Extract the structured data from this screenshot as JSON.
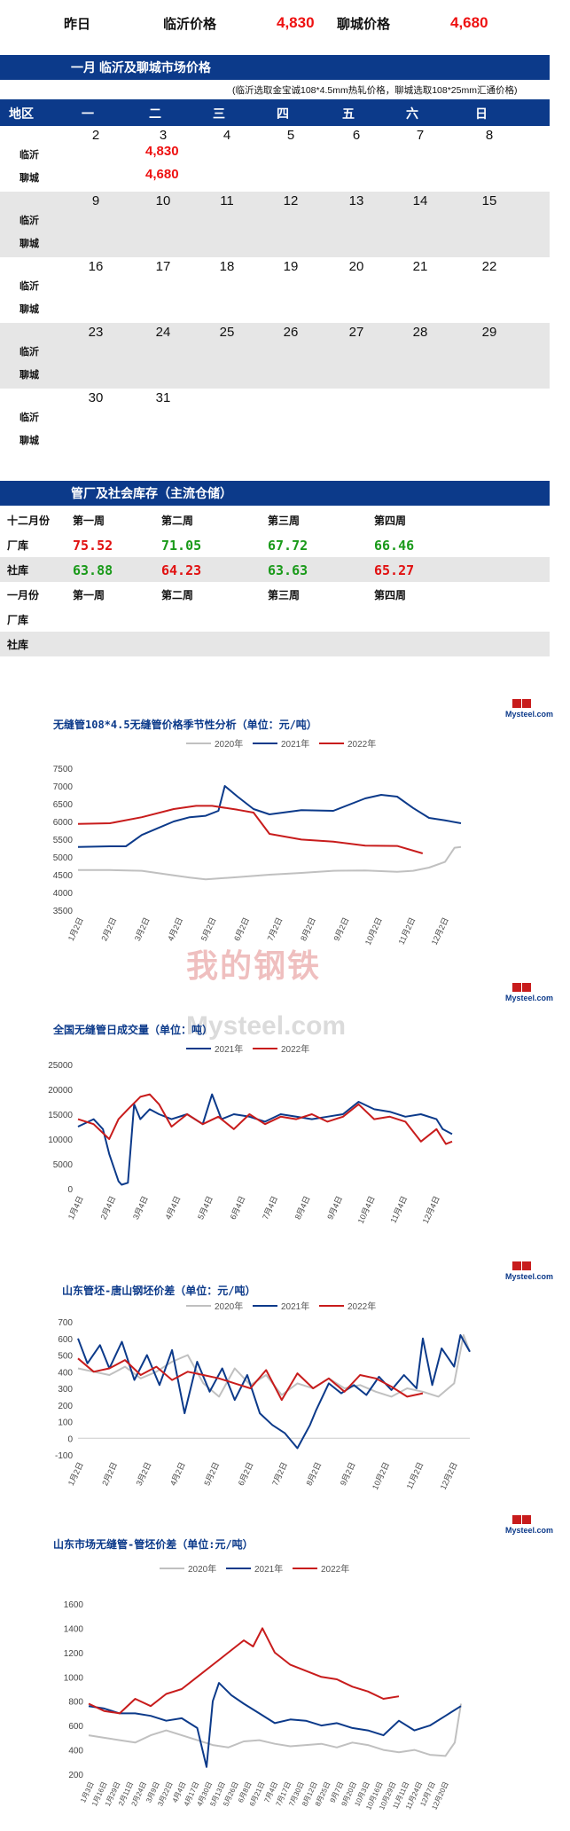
{
  "top": {
    "yesterday": "昨日",
    "linyi_label": "临沂价格",
    "linyi_value": "4,830",
    "liaocheng_label": "聊城价格",
    "liaocheng_value": "4,680"
  },
  "market": {
    "title": "一月  临沂及聊城市场价格",
    "note": "(临沂选取金宝诚108*4.5mm热轧价格，聊城选取108*25mm汇通价格)",
    "header": [
      "地区",
      "一",
      "二",
      "三",
      "四",
      "五",
      "六",
      "日"
    ],
    "city1": "临沂",
    "city2": "聊城",
    "weeks": [
      {
        "days": [
          "2",
          "3",
          "4",
          "5",
          "6",
          "7",
          "8"
        ],
        "linyi": [
          "",
          "4,830",
          "",
          "",
          "",
          "",
          ""
        ],
        "liaocheng": [
          "",
          "4,680",
          "",
          "",
          "",
          "",
          ""
        ]
      },
      {
        "days": [
          "9",
          "10",
          "11",
          "12",
          "13",
          "14",
          "15"
        ],
        "linyi": [],
        "liaocheng": []
      },
      {
        "days": [
          "16",
          "17",
          "18",
          "19",
          "20",
          "21",
          "22"
        ],
        "linyi": [],
        "liaocheng": []
      },
      {
        "days": [
          "23",
          "24",
          "25",
          "26",
          "27",
          "28",
          "29"
        ],
        "linyi": [],
        "liaocheng": []
      },
      {
        "days": [
          "30",
          "31",
          "",
          "",
          "",
          "",
          ""
        ],
        "linyi": [],
        "liaocheng": []
      }
    ]
  },
  "stock": {
    "title": "管厂及社会库存（主流仓储）",
    "dec_label": "十二月份",
    "jan_label": "一月份",
    "weeks": [
      "第一周",
      "第二周",
      "第三周",
      "第四周"
    ],
    "factory_label": "厂库",
    "social_label": "社库",
    "dec_factory": [
      {
        "v": "75.52",
        "c": "#e11111"
      },
      {
        "v": "71.05",
        "c": "#1a9a1a"
      },
      {
        "v": "67.72",
        "c": "#1a9a1a"
      },
      {
        "v": "66.46",
        "c": "#1a9a1a"
      }
    ],
    "dec_social": [
      {
        "v": "63.88",
        "c": "#1a9a1a"
      },
      {
        "v": "64.23",
        "c": "#e11111"
      },
      {
        "v": "63.63",
        "c": "#1a9a1a"
      },
      {
        "v": "65.27",
        "c": "#e11111"
      }
    ]
  },
  "logo": {
    "text": "Mysteel.com",
    "chars": "我的钢铁"
  },
  "watermark": {
    "chars": "我的钢铁",
    "text": "Mysteel.com"
  },
  "chart_data": [
    {
      "type": "line",
      "title": "无缝管108*4.5无缝管价格季节性分析（单位：元/吨）",
      "ylim": [
        3500,
        7500
      ],
      "yticks": [
        3500,
        4000,
        4500,
        5000,
        5500,
        6000,
        6500,
        7000,
        7500
      ],
      "xticks": [
        "1月2日",
        "2月2日",
        "3月2日",
        "4月2日",
        "5月2日",
        "6月2日",
        "7月2日",
        "8月2日",
        "9月2日",
        "10月2日",
        "11月2日",
        "12月2日"
      ],
      "x_domain": [
        0,
        12
      ],
      "grid": false,
      "legend": "top",
      "series": [
        {
          "name": "2020年",
          "color": "#c0c0c0",
          "x": [
            0,
            1,
            2,
            3,
            3.5,
            4,
            5,
            6,
            7,
            8,
            9,
            10,
            10.5,
            11,
            11.5,
            11.8,
            12
          ],
          "values": [
            4630,
            4630,
            4610,
            4480,
            4420,
            4370,
            4430,
            4500,
            4550,
            4610,
            4620,
            4580,
            4610,
            4700,
            4860,
            5260,
            5280
          ]
        },
        {
          "name": "2021年",
          "color": "#0c3a8a",
          "x": [
            0,
            1,
            1.5,
            2,
            2.5,
            3,
            3.5,
            4,
            4.4,
            4.6,
            5,
            5.5,
            6,
            7,
            8,
            9,
            9.5,
            10,
            10.5,
            11,
            11.5,
            12
          ],
          "values": [
            5280,
            5300,
            5300,
            5620,
            5810,
            6000,
            6120,
            6160,
            6300,
            7000,
            6700,
            6350,
            6200,
            6320,
            6300,
            6650,
            6750,
            6700,
            6380,
            6100,
            6030,
            5950
          ]
        },
        {
          "name": "2022年",
          "color": "#c81c1c",
          "x": [
            0,
            1,
            2,
            3,
            3.7,
            4.2,
            5,
            5.5,
            6,
            7,
            8,
            9,
            10,
            10.8
          ],
          "values": [
            5930,
            5950,
            6120,
            6350,
            6440,
            6440,
            6330,
            6250,
            5650,
            5490,
            5430,
            5320,
            5310,
            5100
          ]
        }
      ]
    },
    {
      "type": "line",
      "title": "全国无缝管日成交量（单位：吨）",
      "ylim": [
        0,
        25000
      ],
      "yticks": [
        0,
        5000,
        10000,
        15000,
        20000,
        25000
      ],
      "xticks": [
        "1月4日",
        "2月4日",
        "3月4日",
        "4月4日",
        "5月4日",
        "6月4日",
        "7月4日",
        "8月4日",
        "9月4日",
        "10月4日",
        "11月4日",
        "12月4日"
      ],
      "x_domain": [
        0,
        12
      ],
      "grid": false,
      "legend": "top",
      "series": [
        {
          "name": "2021年",
          "color": "#0c3a8a",
          "x": [
            0,
            0.5,
            0.8,
            1,
            1.3,
            1.4,
            1.6,
            1.8,
            2,
            2.3,
            2.6,
            3,
            3.5,
            4,
            4.3,
            4.6,
            5,
            5.5,
            6,
            6.5,
            7,
            7.5,
            8,
            8.5,
            9,
            9.5,
            10,
            10.5,
            11,
            11.5,
            11.7,
            12
          ],
          "values": [
            12500,
            14000,
            12000,
            7000,
            1500,
            800,
            1200,
            17000,
            14000,
            16000,
            15000,
            14000,
            15000,
            13000,
            19000,
            14000,
            15000,
            14500,
            13500,
            15000,
            14500,
            14000,
            14500,
            15000,
            17500,
            16000,
            15500,
            14500,
            15000,
            14000,
            12000,
            11000
          ]
        },
        {
          "name": "2022年",
          "color": "#c81c1c",
          "x": [
            0,
            0.5,
            1,
            1.3,
            1.6,
            2,
            2.3,
            2.6,
            3,
            3.5,
            4,
            4.5,
            5,
            5.5,
            6,
            6.5,
            7,
            7.5,
            8,
            8.5,
            9,
            9.5,
            10,
            10.5,
            11,
            11.5,
            11.8,
            12
          ],
          "values": [
            14000,
            13000,
            10000,
            14000,
            16000,
            18500,
            19000,
            17000,
            12500,
            15000,
            13000,
            14500,
            12000,
            15000,
            13000,
            14500,
            14000,
            15000,
            13500,
            14500,
            17000,
            14000,
            14500,
            13500,
            9500,
            12000,
            9000,
            9500
          ]
        }
      ]
    },
    {
      "type": "line",
      "title": "山东管坯-唐山钢坯价差（单位：元/吨）",
      "ylim": [
        -100,
        700
      ],
      "yticks": [
        -100,
        0,
        100,
        200,
        300,
        400,
        500,
        600,
        700
      ],
      "xticks": [
        "1月2日",
        "2月2日",
        "3月2日",
        "4月2日",
        "5月2日",
        "6月2日",
        "7月2日",
        "8月2日",
        "9月2日",
        "10月2日",
        "11月2日",
        "12月2日"
      ],
      "x_domain": [
        0,
        12.5
      ],
      "grid": false,
      "legend": "top",
      "series": [
        {
          "name": "2020年",
          "color": "#c0c0c0",
          "x": [
            0,
            0.5,
            1,
            1.5,
            2,
            2.5,
            3,
            3.5,
            4,
            4.5,
            5,
            5.5,
            6,
            6.5,
            7,
            7.5,
            8,
            8.5,
            9,
            9.5,
            10,
            10.5,
            11,
            11.5,
            12,
            12.3,
            12.5
          ],
          "values": [
            420,
            400,
            380,
            430,
            360,
            400,
            460,
            500,
            330,
            250,
            420,
            320,
            380,
            260,
            330,
            300,
            360,
            300,
            320,
            280,
            250,
            300,
            280,
            250,
            330,
            620,
            520
          ]
        },
        {
          "name": "2021年",
          "color": "#0c3a8a",
          "x": [
            0,
            0.3,
            0.7,
            1,
            1.4,
            1.8,
            2.2,
            2.6,
            3,
            3.4,
            3.8,
            4.2,
            4.6,
            5,
            5.4,
            5.8,
            6.2,
            6.6,
            7,
            7.4,
            7.6,
            8,
            8.4,
            8.8,
            9.2,
            9.6,
            10,
            10.4,
            10.8,
            11,
            11.3,
            11.6,
            12,
            12.2,
            12.5
          ],
          "values": [
            600,
            450,
            560,
            420,
            580,
            350,
            500,
            320,
            530,
            150,
            460,
            280,
            420,
            230,
            380,
            150,
            80,
            30,
            -60,
            80,
            170,
            330,
            270,
            320,
            260,
            370,
            290,
            380,
            300,
            600,
            320,
            540,
            430,
            620,
            520
          ]
        },
        {
          "name": "2022年",
          "color": "#c81c1c",
          "x": [
            0,
            0.5,
            1,
            1.5,
            2,
            2.5,
            3,
            3.5,
            4,
            4.5,
            5,
            5.5,
            6,
            6.5,
            7,
            7.5,
            8,
            8.5,
            9,
            9.5,
            10,
            10.5,
            11
          ],
          "values": [
            480,
            400,
            420,
            470,
            380,
            430,
            350,
            400,
            380,
            360,
            330,
            300,
            410,
            230,
            390,
            300,
            360,
            280,
            380,
            360,
            310,
            250,
            270
          ]
        }
      ]
    },
    {
      "type": "line",
      "title": "山东市场无缝管-管坯价差（单位:元/吨）",
      "ylim": [
        200,
        1600
      ],
      "yticks": [
        200,
        400,
        600,
        800,
        1000,
        1200,
        1400,
        1600
      ],
      "xticks": [
        "1月3日",
        "1月16日",
        "1月29日",
        "2月11日",
        "2月24日",
        "3月9日",
        "3月22日",
        "4月4日",
        "4月17日",
        "4月30日",
        "5月13日",
        "5月26日",
        "6月8日",
        "6月21日",
        "7月4日",
        "7月17日",
        "7月30日",
        "8月12日",
        "8月25日",
        "9月7日",
        "9月20日",
        "10月3日",
        "10月16日",
        "10月29日",
        "11月11日",
        "11月24日",
        "12月7日",
        "12月20日"
      ],
      "x_domain": [
        0,
        12
      ],
      "grid": false,
      "legend": "top",
      "series": [
        {
          "name": "2020年",
          "color": "#c0c0c0",
          "x": [
            0,
            0.5,
            1,
            1.5,
            2,
            2.5,
            3,
            3.5,
            4,
            4.5,
            5,
            5.5,
            6,
            6.5,
            7,
            7.5,
            8,
            8.5,
            9,
            9.5,
            10,
            10.5,
            11,
            11.5,
            11.8,
            12
          ],
          "values": [
            520,
            500,
            480,
            460,
            520,
            560,
            520,
            480,
            440,
            420,
            470,
            480,
            450,
            430,
            440,
            450,
            420,
            460,
            440,
            400,
            380,
            400,
            360,
            350,
            460,
            780
          ]
        },
        {
          "name": "2021年",
          "color": "#0c3a8a",
          "x": [
            0,
            0.5,
            1,
            1.5,
            2,
            2.5,
            3,
            3.5,
            3.8,
            4,
            4.2,
            4.6,
            5,
            5.5,
            6,
            6.5,
            7,
            7.5,
            8,
            8.5,
            9,
            9.5,
            10,
            10.5,
            11,
            11.5,
            12
          ],
          "values": [
            760,
            740,
            700,
            700,
            680,
            640,
            660,
            580,
            260,
            800,
            950,
            850,
            780,
            700,
            620,
            650,
            640,
            600,
            620,
            580,
            560,
            520,
            640,
            560,
            600,
            680,
            760
          ]
        },
        {
          "name": "2022年",
          "color": "#c81c1c",
          "x": [
            0,
            0.5,
            1,
            1.5,
            2,
            2.5,
            3,
            3.5,
            4,
            4.5,
            5,
            5.3,
            5.6,
            6,
            6.5,
            7,
            7.5,
            8,
            8.5,
            9,
            9.5,
            10
          ],
          "values": [
            780,
            720,
            700,
            820,
            760,
            860,
            900,
            1000,
            1100,
            1200,
            1300,
            1250,
            1400,
            1200,
            1100,
            1050,
            1000,
            980,
            920,
            880,
            820,
            840
          ]
        }
      ]
    }
  ]
}
